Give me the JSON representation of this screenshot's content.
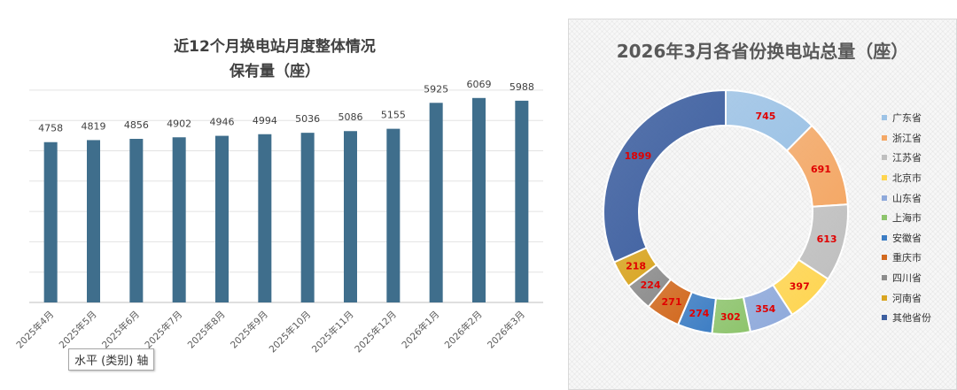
{
  "chart_data": [
    {
      "type": "bar",
      "title": "近12个月换电站月度整体情况",
      "subtitle": "保有量（座）",
      "categories": [
        "2025年4月",
        "2025年5月",
        "2025年6月",
        "2025年7月",
        "2025年8月",
        "2025年9月",
        "2025年10月",
        "2025年11月",
        "2025年12月",
        "2026年1月",
        "2026年2月",
        "2026年3月"
      ],
      "values": [
        4758,
        4819,
        4856,
        4902,
        4946,
        4994,
        5036,
        5086,
        5155,
        5925,
        6069,
        5988
      ],
      "ylim": [
        0,
        6300
      ],
      "grid": true,
      "bar_color": "#3f6e8c",
      "axis_tooltip": "水平 (类别) 轴"
    },
    {
      "type": "pie",
      "donut": true,
      "title": "2026年3月各省份换电站总量（座）",
      "legend_position": "right",
      "label_color": "#e00000",
      "labels": [
        "广东省",
        "浙江省",
        "江苏省",
        "北京市",
        "山东省",
        "上海市",
        "安徽省",
        "重庆市",
        "四川省",
        "河南省",
        "其他省份"
      ],
      "values": [
        745,
        691,
        613,
        397,
        354,
        302,
        274,
        271,
        224,
        218,
        1899
      ],
      "colors": [
        "#9dc3e6",
        "#f4a866",
        "#bfbfbf",
        "#ffd54f",
        "#8ea9db",
        "#8dc46c",
        "#3c7dc4",
        "#d2691e",
        "#8c8c8c",
        "#d9a521",
        "#3d5fa0"
      ]
    }
  ]
}
